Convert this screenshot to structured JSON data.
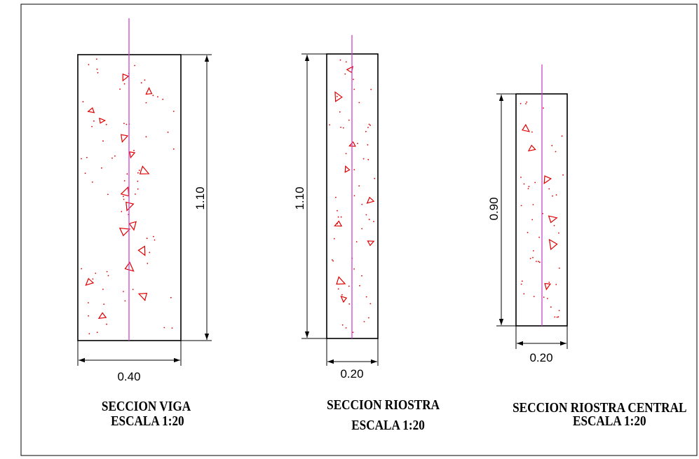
{
  "colors": {
    "outline": "#000000",
    "centerline": "#cc44cc",
    "aggregate": "#e00000"
  },
  "sections": [
    {
      "title": "SECCION VIGA",
      "scale": "ESCALA 1:20",
      "width_label": "0.40",
      "height_label": "1.10"
    },
    {
      "title": "SECCION RIOSTRA",
      "scale": "ESCALA 1:20",
      "width_label": "0.20",
      "height_label": "1.10"
    },
    {
      "title": "SECCION RIOSTRA CENTRAL",
      "scale": "ESCALA 1:20",
      "width_label": "0.20",
      "height_label": "0.90"
    }
  ]
}
